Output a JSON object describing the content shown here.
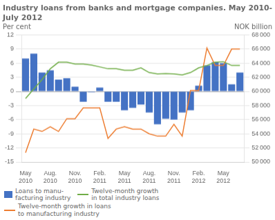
{
  "chart_data": {
    "type": "bar",
    "title": "Industry loans from banks and mortgage companies. May 2010-\nJuly 2012",
    "ylabel": "Per cent",
    "y2label": "NOK billion",
    "categories": [
      "May\n2010",
      null,
      null,
      "Aug.\n2010",
      null,
      null,
      "Nov.\n2010",
      null,
      null,
      "Feb.\n2011",
      null,
      null,
      "May\n2011",
      null,
      null,
      "Aug.\n2011",
      null,
      null,
      "Nov.\n2011",
      null,
      null,
      "Feb.\n2012",
      null,
      null,
      "May\n2012",
      null,
      null
    ],
    "series": [
      {
        "name": "Loans to manu-\nfacturing industry",
        "type": "bar",
        "color": "#4472C4",
        "values": [
          7.0,
          8.0,
          4.0,
          4.5,
          2.5,
          2.8,
          1.0,
          -2.2,
          -0.2,
          0.8,
          -2.2,
          -2.2,
          -4.0,
          -3.5,
          -2.8,
          -4.5,
          -7.0,
          -5.8,
          -6.0,
          -4.5,
          -4.0,
          1.2,
          5.5,
          6.2,
          6.0,
          1.5,
          4.0
        ]
      },
      {
        "name": "Twelve-month growth\nin total industry loans",
        "type": "line",
        "color": "#70AD47",
        "values": [
          -1.5,
          0.5,
          2.5,
          4.8,
          6.2,
          6.2,
          5.8,
          5.8,
          5.6,
          5.2,
          4.8,
          4.8,
          4.5,
          4.5,
          5.0,
          4.0,
          3.7,
          3.8,
          3.7,
          3.5,
          4.0,
          5.0,
          5.5,
          6.2,
          6.3,
          5.5,
          5.5
        ]
      },
      {
        "name": "Twelve-month growth in loans\nto manufacturing industry",
        "type": "line",
        "color": "#ED7D31",
        "values": [
          -13.0,
          -8.0,
          -8.5,
          -7.5,
          -8.5,
          -5.8,
          -5.8,
          -3.5,
          -3.5,
          -3.5,
          -10.0,
          -8.0,
          -7.5,
          -8.0,
          -8.0,
          -9.0,
          -9.5,
          -9.5,
          -7.0,
          -9.5,
          0.2,
          0.2,
          9.2,
          5.5,
          5.5,
          9.0,
          9.0
        ]
      }
    ],
    "ylim": [
      -15,
      12
    ],
    "yticks": [
      -15,
      -12,
      -9,
      -6,
      -3,
      0,
      3,
      6,
      9,
      12
    ],
    "y2lim": [
      50000,
      68000
    ],
    "y2ticks": [
      {
        "value": 50000,
        "label": "50 000"
      },
      {
        "value": 52000,
        "label": "52 000"
      },
      {
        "value": 54000,
        "label": "54 000"
      },
      {
        "value": 56000,
        "label": "56 000"
      },
      {
        "value": 58000,
        "label": "58 000"
      },
      {
        "value": 60000,
        "label": "60 000"
      },
      {
        "value": 62000,
        "label": "62 000"
      },
      {
        "value": 64000,
        "label": "64 000"
      },
      {
        "value": 66000,
        "label": "66 000"
      },
      {
        "value": 68000,
        "label": "68 000"
      }
    ],
    "grid": true,
    "legend": "lower left"
  }
}
